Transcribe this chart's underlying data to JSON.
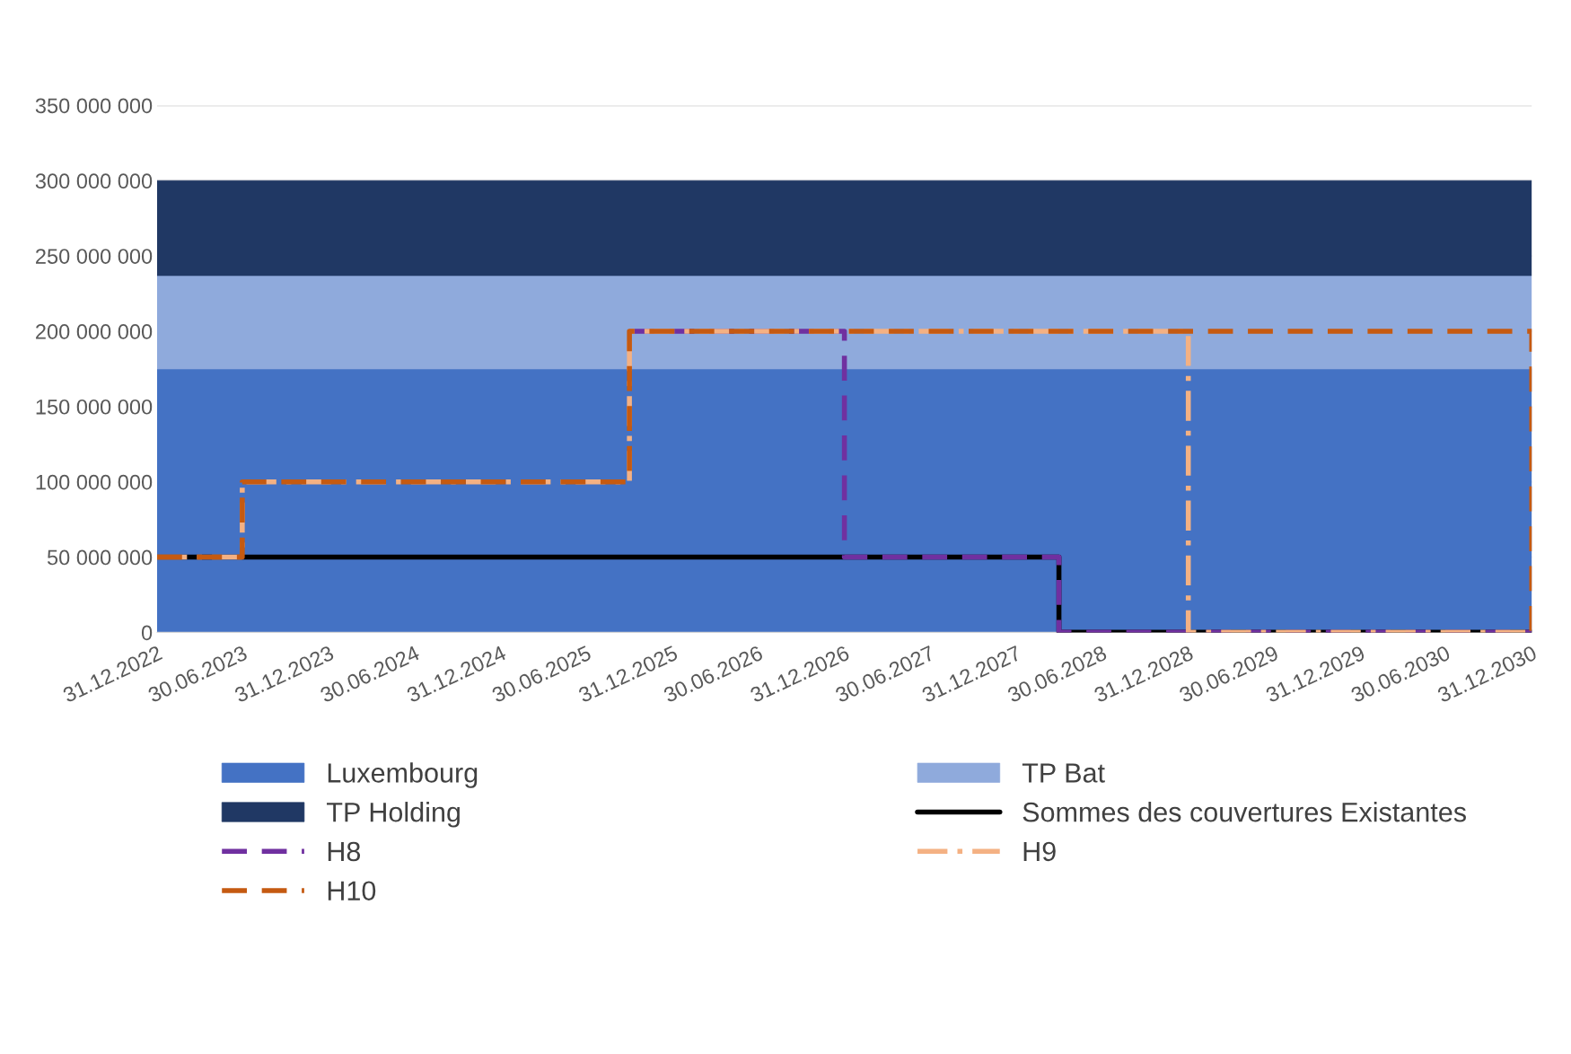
{
  "chart_data": {
    "type": "area",
    "stacked": true,
    "series": [
      {
        "name": "Luxembourg",
        "color": "#4472c4",
        "x": [
          "2022-12-31",
          "2030-12-31"
        ],
        "values": [
          175000000,
          175000000
        ]
      },
      {
        "name": "TP Bat",
        "color": "#8faadc",
        "x": [
          "2022-12-31",
          "2030-12-31"
        ],
        "values": [
          62000000,
          62000000
        ]
      },
      {
        "name": "TP Holding",
        "color": "#203864",
        "x": [
          "2022-12-31",
          "2030-12-31"
        ],
        "values": [
          63000000,
          63000000
        ]
      },
      {
        "name": "Sommes des couvertures Existantes",
        "type": "step",
        "color": "#000000",
        "line_style": "solid",
        "x": [
          "2022-12-31",
          "2028-03-31",
          "2030-12-31"
        ],
        "values": [
          50000000,
          0,
          0
        ]
      },
      {
        "name": "H8",
        "type": "step",
        "color": "#7030a0",
        "line_style": "dashed",
        "x": [
          "2025-09-30",
          "2026-12-31",
          "2028-03-31",
          "2030-12-31"
        ],
        "values": [
          200000000,
          50000000,
          0,
          0
        ]
      },
      {
        "name": "H9",
        "type": "step",
        "color": "#f4b183",
        "line_style": "dashdot",
        "x": [
          "2022-12-31",
          "2023-06-30",
          "2025-09-30",
          "2028-12-31",
          "2030-12-31"
        ],
        "values": [
          50000000,
          100000000,
          200000000,
          0,
          0
        ]
      },
      {
        "name": "H10",
        "type": "step",
        "color": "#c55a11",
        "line_style": "dashed",
        "x": [
          "2022-12-31",
          "2023-06-30",
          "2025-09-30",
          "2030-12-31"
        ],
        "values": [
          50000000,
          100000000,
          200000000,
          0
        ]
      }
    ],
    "xlim": [
      "2022-12-31",
      "2030-12-31"
    ],
    "xticks": [
      {
        "value": "2022-12-31",
        "label": "31.12.2022"
      },
      {
        "value": "2023-06-30",
        "label": "30.06.2023"
      },
      {
        "value": "2023-12-31",
        "label": "31.12.2023"
      },
      {
        "value": "2024-06-30",
        "label": "30.06.2024"
      },
      {
        "value": "2024-12-31",
        "label": "31.12.2024"
      },
      {
        "value": "2025-06-30",
        "label": "30.06.2025"
      },
      {
        "value": "2025-12-31",
        "label": "31.12.2025"
      },
      {
        "value": "2026-06-30",
        "label": "30.06.2026"
      },
      {
        "value": "2026-12-31",
        "label": "31.12.2026"
      },
      {
        "value": "2027-06-30",
        "label": "30.06.2027"
      },
      {
        "value": "2027-12-31",
        "label": "31.12.2027"
      },
      {
        "value": "2028-06-30",
        "label": "30.06.2028"
      },
      {
        "value": "2028-12-31",
        "label": "31.12.2028"
      },
      {
        "value": "2029-06-30",
        "label": "30.06.2029"
      },
      {
        "value": "2029-12-31",
        "label": "31.12.2029"
      },
      {
        "value": "2030-06-30",
        "label": "30.06.2030"
      },
      {
        "value": "2030-12-31",
        "label": "31.12.2030"
      }
    ],
    "ylim": [
      0,
      350000000
    ],
    "yticks": [
      0,
      {
        "value": 50000000,
        "label": "50 000 000"
      },
      {
        "value": 100000000,
        "label": "100 000 000"
      },
      {
        "value": 150000000,
        "label": "150 000 000"
      },
      {
        "value": 200000000,
        "label": "200 000 000"
      },
      {
        "value": 250000000,
        "label": "250 000 000"
      },
      {
        "value": 300000000,
        "label": "300 000 000"
      },
      {
        "value": 350000000,
        "label": "350 000 000"
      }
    ],
    "grid": "y",
    "legend": "bottom"
  }
}
